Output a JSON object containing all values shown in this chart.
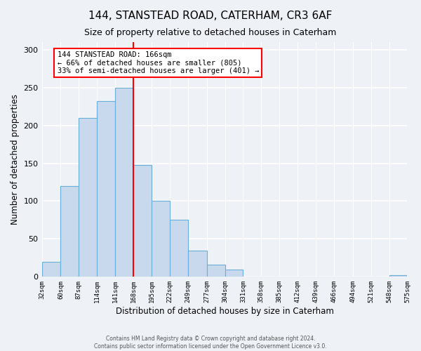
{
  "title": "144, STANSTEAD ROAD, CATERHAM, CR3 6AF",
  "subtitle": "Size of property relative to detached houses in Caterham",
  "xlabel": "Distribution of detached houses by size in Caterham",
  "ylabel": "Number of detached properties",
  "bar_edges": [
    32,
    60,
    87,
    114,
    141,
    168,
    195,
    222,
    249,
    277,
    304,
    331,
    358,
    385,
    412,
    439,
    466,
    494,
    521,
    548,
    575
  ],
  "bar_heights": [
    20,
    120,
    210,
    232,
    250,
    148,
    100,
    75,
    35,
    16,
    10,
    0,
    0,
    0,
    0,
    0,
    0,
    0,
    0,
    2
  ],
  "bar_color": "#c8d9ed",
  "bar_edge_color": "#6baed6",
  "vline_x": 168,
  "vline_color": "red",
  "annotation_text": "144 STANSTEAD ROAD: 166sqm\n← 66% of detached houses are smaller (805)\n33% of semi-detached houses are larger (401) →",
  "annotation_box_color": "white",
  "annotation_box_edge": "red",
  "ylim": [
    0,
    310
  ],
  "tick_labels": [
    "32sqm",
    "60sqm",
    "87sqm",
    "114sqm",
    "141sqm",
    "168sqm",
    "195sqm",
    "222sqm",
    "249sqm",
    "277sqm",
    "304sqm",
    "331sqm",
    "358sqm",
    "385sqm",
    "412sqm",
    "439sqm",
    "466sqm",
    "494sqm",
    "521sqm",
    "548sqm",
    "575sqm"
  ],
  "footer1": "Contains HM Land Registry data © Crown copyright and database right 2024.",
  "footer2": "Contains public sector information licensed under the Open Government Licence v3.0.",
  "background_color": "#eef2f7",
  "grid_color": "white"
}
